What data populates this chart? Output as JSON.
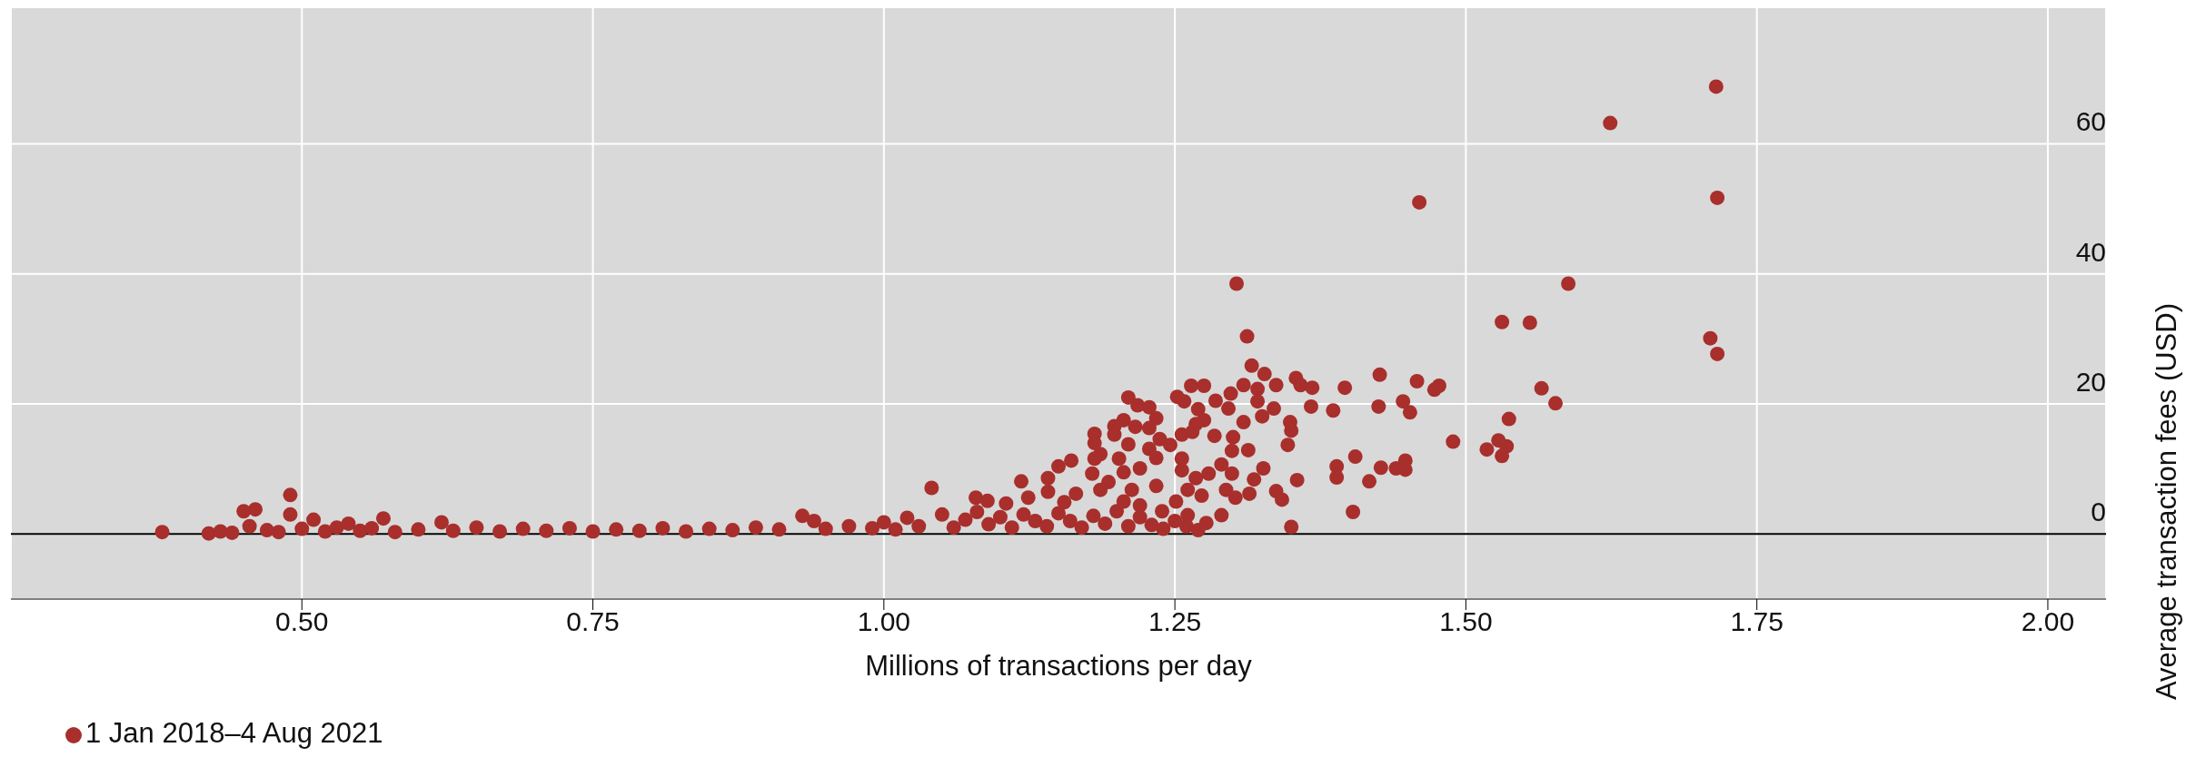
{
  "chart_data": {
    "type": "scatter",
    "xlabel": "Millions of transactions per day",
    "ylabel": "Average transaction fees (USD)",
    "xlim": [
      0.25,
      2.05
    ],
    "xticks": [
      {
        "value": 0.5,
        "label": "0.50"
      },
      {
        "value": 0.75,
        "label": "0.75"
      },
      {
        "value": 1.0,
        "label": "1.00"
      },
      {
        "value": 1.25,
        "label": "1.25"
      },
      {
        "value": 1.5,
        "label": "1.50"
      },
      {
        "value": 1.75,
        "label": "1.75"
      },
      {
        "value": 2.0,
        "label": "2.00"
      }
    ],
    "ylim": [
      -10,
      81
    ],
    "yticks": [
      0,
      20,
      40,
      60
    ],
    "grid": true,
    "legend": "bottom left",
    "marker": "circle",
    "ref_lines": [
      {
        "axis": "y",
        "value": 0,
        "color": "#000000"
      }
    ],
    "series": [
      {
        "name": "1 Jan 2018–4 Aug 2021",
        "color": "#a82f2c",
        "x": [
          0.38,
          0.42,
          0.43,
          0.44,
          0.45,
          0.455,
          0.46,
          0.47,
          0.48,
          0.49,
          0.49,
          0.5,
          0.51,
          0.52,
          0.53,
          0.54,
          0.55,
          0.56,
          0.57,
          0.58,
          0.6,
          0.62,
          0.63,
          0.65,
          0.67,
          0.69,
          0.71,
          0.73,
          0.75,
          0.77,
          0.79,
          0.81,
          0.83,
          0.85,
          0.87,
          0.89,
          0.91,
          0.93,
          0.94,
          0.95,
          0.97,
          0.99,
          1.0,
          1.01,
          1.02,
          1.03,
          1.05,
          1.06,
          1.07,
          1.08,
          1.09,
          1.1,
          1.11,
          1.12,
          1.13,
          1.14,
          1.15,
          1.16,
          1.17,
          1.18,
          1.19,
          1.2,
          1.21,
          1.22,
          1.23,
          1.24,
          1.25,
          1.26,
          1.27,
          1.303,
          1.312,
          1.316,
          1.327,
          1.337,
          1.354,
          1.358,
          1.368,
          1.396,
          1.426,
          1.458,
          1.473,
          1.477,
          1.367,
          1.386,
          1.425,
          1.446,
          1.452,
          1.335,
          1.325,
          1.349,
          1.35,
          1.347,
          1.405,
          1.389,
          1.389,
          1.427,
          1.417,
          1.44,
          1.448,
          1.448,
          1.355,
          1.326,
          1.318,
          1.337,
          1.342,
          1.314,
          1.403,
          1.35,
          1.29,
          1.277,
          1.264,
          1.275,
          1.252,
          1.258,
          1.285,
          1.298,
          1.309,
          1.321,
          1.321,
          1.27,
          1.296,
          1.275,
          1.268,
          1.256,
          1.265,
          1.284,
          1.309,
          1.3,
          1.313,
          1.299,
          1.29,
          1.299,
          1.279,
          1.268,
          1.294,
          1.302,
          1.261,
          1.256,
          1.251,
          1.273,
          1.261,
          1.239,
          1.21,
          1.218,
          1.228,
          1.234,
          1.206,
          1.198,
          1.216,
          1.228,
          1.198,
          1.181,
          1.181,
          1.21,
          1.237,
          1.246,
          1.228,
          1.186,
          1.181,
          1.202,
          1.234,
          1.161,
          1.15,
          1.256,
          1.206,
          1.22,
          1.179,
          1.141,
          1.118,
          1.193,
          1.141,
          1.165,
          1.186,
          1.213,
          1.234,
          1.041,
          1.079,
          1.089,
          1.105,
          1.124,
          1.155,
          1.206,
          1.22,
          1.715,
          1.624,
          1.716,
          1.46,
          1.588,
          1.531,
          1.555,
          1.71,
          1.716,
          1.565,
          1.577,
          1.537,
          1.489,
          1.518,
          1.528,
          1.535,
          1.531
        ],
        "values": [
          0.3,
          0.1,
          0.4,
          0.2,
          3.5,
          1.2,
          3.8,
          0.6,
          0.3,
          6.0,
          3.0,
          0.8,
          2.2,
          0.4,
          1.0,
          1.6,
          0.5,
          0.9,
          2.4,
          0.3,
          0.7,
          1.8,
          0.5,
          1.0,
          0.4,
          0.8,
          0.5,
          0.9,
          0.4,
          0.7,
          0.5,
          0.9,
          0.4,
          0.8,
          0.6,
          1.0,
          0.7,
          2.8,
          2.0,
          0.8,
          1.2,
          0.9,
          1.8,
          0.7,
          2.5,
          1.2,
          3.0,
          1.0,
          2.2,
          3.4,
          1.5,
          2.6,
          1.0,
          3.0,
          2.0,
          1.2,
          3.2,
          2.0,
          1.0,
          2.8,
          1.6,
          3.5,
          1.2,
          2.6,
          1.4,
          0.8,
          2.0,
          1.2,
          0.6,
          38.5,
          30.4,
          25.9,
          24.6,
          22.9,
          24.0,
          22.9,
          22.5,
          22.5,
          24.5,
          23.5,
          22.2,
          22.8,
          19.6,
          19.0,
          19.6,
          20.4,
          18.7,
          19.3,
          18.1,
          17.2,
          15.9,
          13.7,
          11.9,
          10.4,
          8.7,
          10.2,
          8.1,
          10.1,
          11.3,
          9.9,
          8.3,
          10.1,
          8.4,
          6.6,
          5.3,
          6.2,
          3.4,
          1.1,
          2.9,
          1.7,
          22.8,
          22.8,
          21.1,
          20.4,
          20.5,
          21.6,
          22.9,
          22.3,
          20.4,
          19.2,
          19.3,
          17.5,
          16.9,
          15.3,
          15.7,
          15.1,
          17.2,
          14.9,
          12.9,
          12.8,
          10.7,
          9.3,
          9.3,
          8.6,
          6.8,
          5.6,
          6.8,
          9.8,
          5.0,
          5.9,
          2.9,
          3.5,
          21.0,
          19.8,
          19.5,
          17.8,
          17.5,
          16.6,
          16.5,
          16.3,
          15.3,
          15.4,
          14.0,
          13.8,
          14.6,
          13.7,
          13.1,
          12.3,
          11.6,
          11.6,
          11.7,
          11.3,
          10.4,
          11.6,
          9.5,
          10.1,
          9.3,
          8.6,
          8.1,
          8.0,
          6.5,
          6.2,
          6.8,
          6.8,
          7.4,
          7.1,
          5.6,
          5.1,
          4.7,
          5.6,
          4.9,
          5.0,
          4.4,
          68.8,
          63.2,
          51.7,
          51.0,
          38.5,
          32.6,
          32.5,
          30.1,
          27.7,
          22.4,
          20.1,
          17.7,
          14.2,
          13.0,
          14.4,
          13.5,
          12.0
        ]
      }
    ]
  }
}
